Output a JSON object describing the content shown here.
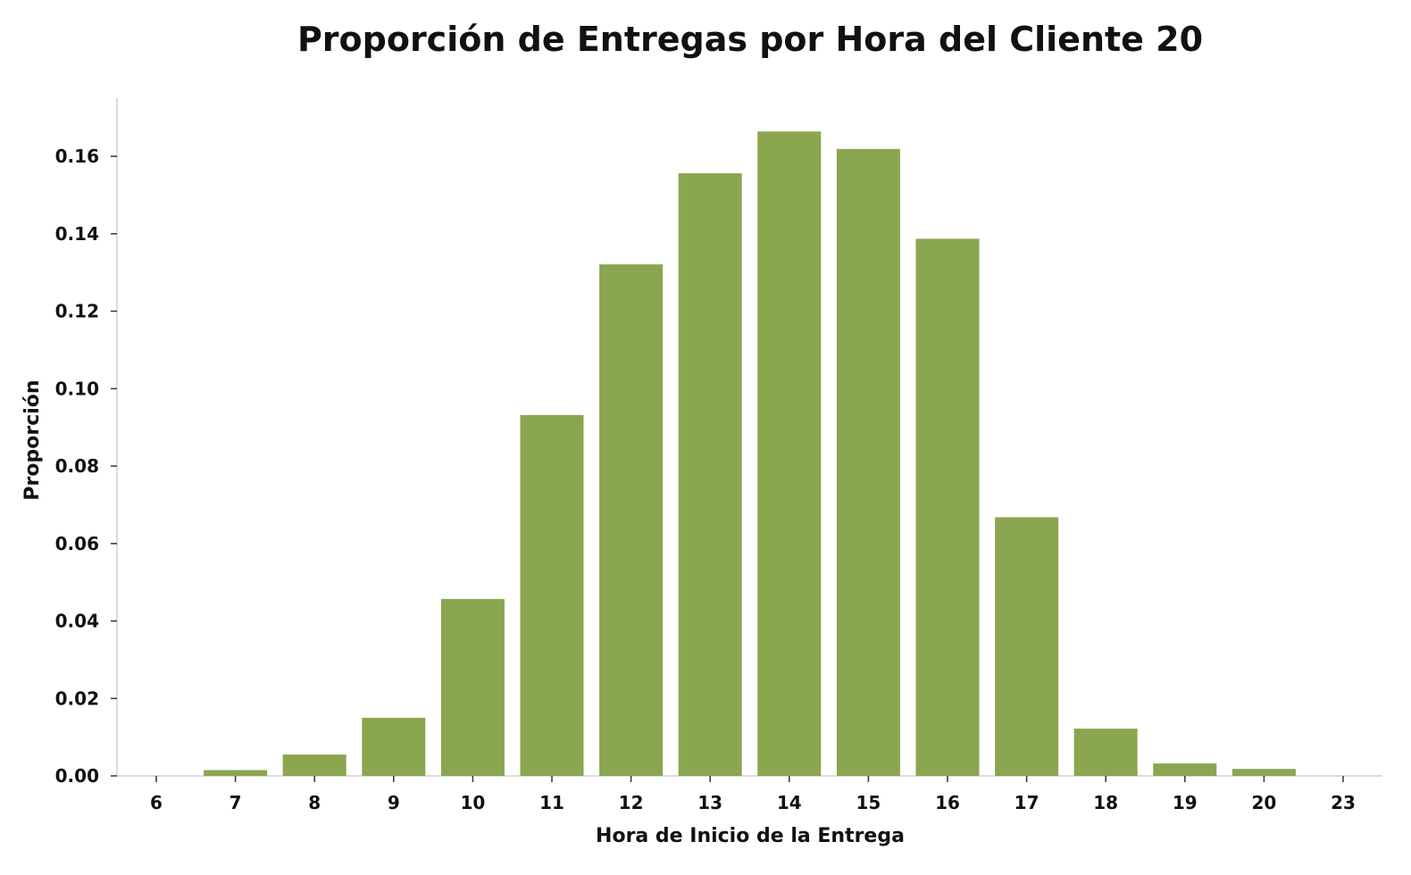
{
  "chart_data": {
    "type": "bar",
    "title": "Proporción de Entregas por Hora del Cliente 20",
    "xlabel": "Hora de Inicio de la Entrega",
    "ylabel": "Proporción",
    "categories": [
      "6",
      "7",
      "8",
      "9",
      "10",
      "11",
      "12",
      "13",
      "14",
      "15",
      "16",
      "17",
      "18",
      "19",
      "20",
      "23"
    ],
    "values": [
      0.0,
      0.0015,
      0.0055,
      0.015,
      0.0457,
      0.0932,
      0.1321,
      0.1556,
      0.1664,
      0.1619,
      0.1387,
      0.0668,
      0.0122,
      0.0032,
      0.0018,
      0.0
    ],
    "ylim": [
      0,
      0.175
    ],
    "yticks": [
      "0.00",
      "0.02",
      "0.04",
      "0.06",
      "0.08",
      "0.10",
      "0.12",
      "0.14",
      "0.16"
    ],
    "grid": false,
    "bar_color": "#8aa64f"
  }
}
